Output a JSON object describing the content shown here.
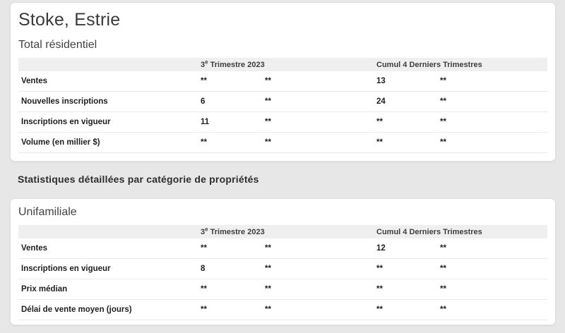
{
  "page": {
    "title": "Stoke, Estrie",
    "section_heading": "Statistiques détaillées par catégorie de propriétés"
  },
  "columns": {
    "period1_prefix": "3",
    "period1_sup": "e",
    "period1_rest": " Trimestre 2023",
    "period2": "Cumul 4 Derniers Trimestres"
  },
  "tables": [
    {
      "title": "Total résidentiel",
      "rows": [
        {
          "label": "Ventes",
          "values": [
            "**",
            "**",
            "13",
            "**"
          ]
        },
        {
          "label": "Nouvelles inscriptions",
          "values": [
            "6",
            "**",
            "24",
            "**"
          ]
        },
        {
          "label": "Inscriptions en vigueur",
          "values": [
            "11",
            "**",
            "**",
            "**"
          ]
        },
        {
          "label": "Volume (en millier $)",
          "values": [
            "**",
            "**",
            "**",
            "**"
          ]
        }
      ]
    },
    {
      "title": "Unifamiliale",
      "rows": [
        {
          "label": "Ventes",
          "values": [
            "**",
            "**",
            "12",
            "**"
          ]
        },
        {
          "label": "Inscriptions en vigueur",
          "values": [
            "8",
            "**",
            "**",
            "**"
          ]
        },
        {
          "label": "Prix médian",
          "values": [
            "**",
            "**",
            "**",
            "**"
          ]
        },
        {
          "label": "Délai de vente moyen (jours)",
          "values": [
            "**",
            "**",
            "**",
            "**"
          ]
        }
      ]
    }
  ],
  "colors": {
    "page_background": "#e7e7e7",
    "card_background": "#ffffff",
    "header_row_background": "#efefef",
    "text_primary": "#212121",
    "separator": "#e9e9e9"
  }
}
